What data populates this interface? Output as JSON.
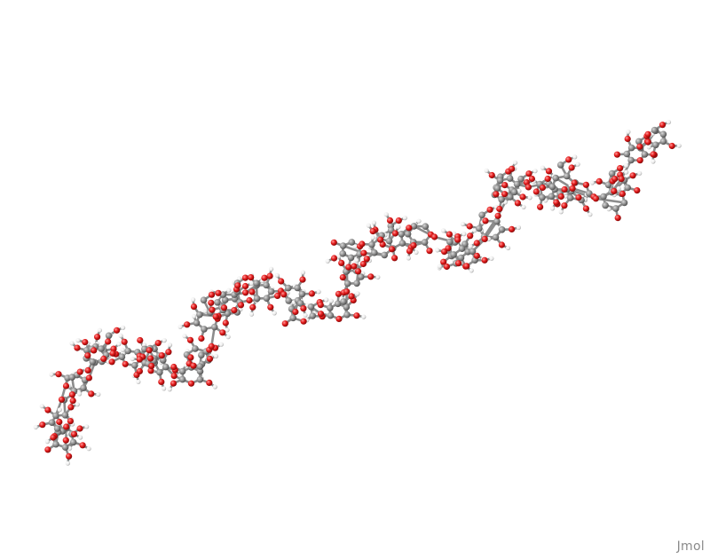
{
  "viewer": {
    "watermark": "Jmol",
    "background": "#ffffff"
  },
  "molecule": {
    "style": "ball-and-stick",
    "atom_colors": {
      "carbon": "#8c8c8c",
      "oxygen": "#e21a1a",
      "hydrogen": "#f2f2f2"
    },
    "bond_color": "#8c8c8c"
  }
}
